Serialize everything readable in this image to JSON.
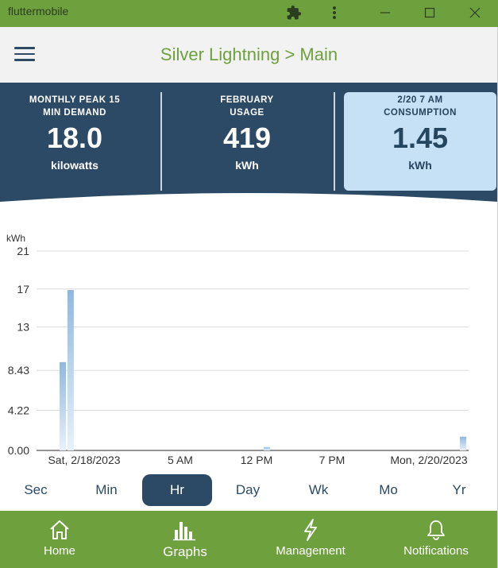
{
  "window": {
    "title": "fluttermobile",
    "controls": [
      "extension-icon",
      "more-vert-icon",
      "minimize-icon",
      "maximize-icon",
      "close-icon"
    ]
  },
  "appbar": {
    "title": "Silver Lightning > Main",
    "menu_icon": "hamburger-icon"
  },
  "summary": {
    "cards": [
      {
        "label_line1": "MONTHLY PEAK 15",
        "label_line2": "MIN DEMAND",
        "value": "18.0",
        "unit": "kilowatts",
        "highlighted": false
      },
      {
        "label_line1": "FEBRUARY",
        "label_line2": "USAGE",
        "value": "419",
        "unit": "kWh",
        "highlighted": false
      },
      {
        "label_line1": "2/20 7 AM",
        "label_line2": "CONSUMPTION",
        "value": "1.45",
        "unit": "kWh",
        "highlighted": true
      }
    ],
    "colors": {
      "panel": "#2c4a66",
      "highlight": "#c6e0f5"
    }
  },
  "chart_data": {
    "type": "bar",
    "ylabel": "kWh",
    "y_ticks": [
      "21",
      "17",
      "13",
      "8.43",
      "4.22",
      "0.00"
    ],
    "ylim": [
      0,
      21
    ],
    "x_tick_labels": [
      "Sat, 2/18/2023",
      "5 AM",
      "12 PM",
      "7 PM",
      "Mon, 2/20/2023"
    ],
    "x_range_hours": [
      0,
      55
    ],
    "bars": [
      {
        "hour": 4,
        "value": 9.3
      },
      {
        "hour": 5,
        "value": 16.9
      },
      {
        "hour": 30,
        "value": 0.35
      },
      {
        "hour": 55,
        "value": 1.45
      }
    ],
    "grid": true,
    "bar_color": "#9fc3e6"
  },
  "tabs": {
    "items": [
      "Sec",
      "Min",
      "Hr",
      "Day",
      "Wk",
      "Mo",
      "Yr"
    ],
    "active": "Hr"
  },
  "bottom_nav": {
    "items": [
      {
        "label": "Home",
        "icon": "home-icon"
      },
      {
        "label": "Graphs",
        "icon": "bar-chart-icon"
      },
      {
        "label": "Management",
        "icon": "lightning-icon"
      },
      {
        "label": "Notifications",
        "icon": "bell-icon"
      }
    ],
    "active": "Graphs",
    "color": "#6ea03e"
  }
}
